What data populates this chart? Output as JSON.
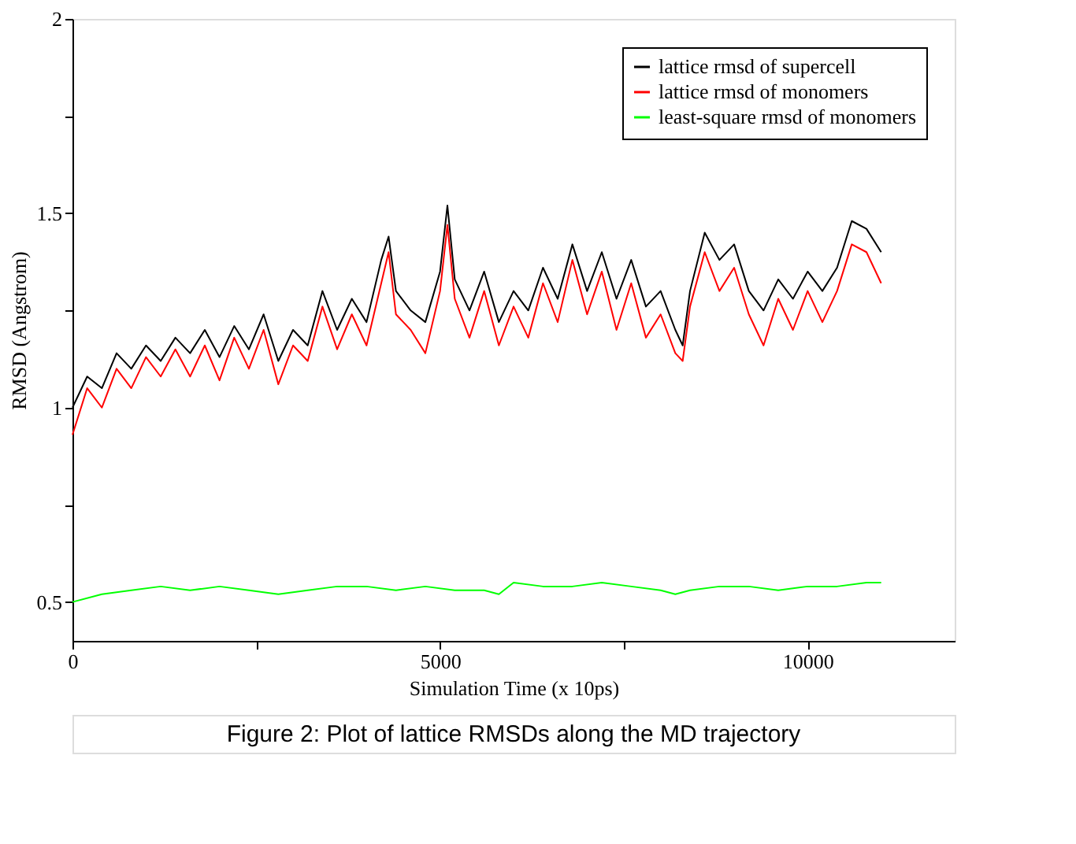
{
  "chart_data": {
    "type": "line",
    "xlabel": "Simulation Time (x 10ps)",
    "ylabel": "RMSD (Angstrom)",
    "xlim": [
      0,
      12000
    ],
    "ylim": [
      0.4,
      2
    ],
    "xticks": [
      0,
      {
        "value": 2500,
        "label": null
      },
      5000,
      {
        "value": 7500,
        "label": null
      },
      10000
    ],
    "yticks": [
      0.5,
      {
        "value": 0.75,
        "label": null
      },
      1,
      {
        "value": 1.25,
        "label": null
      },
      1.5,
      {
        "value": 1.75,
        "label": null
      },
      2
    ],
    "grid": false,
    "legend": "top right",
    "marker": "none",
    "line_style": "solid",
    "series": [
      {
        "name": "lattice rmsd of supercell",
        "color": "#000000",
        "x": [
          0,
          200,
          400,
          600,
          800,
          1000,
          1200,
          1400,
          1600,
          1800,
          2000,
          2200,
          2400,
          2600,
          2800,
          3000,
          3200,
          3400,
          3600,
          3800,
          4000,
          4200,
          4300,
          4400,
          4600,
          4800,
          5000,
          5100,
          5200,
          5400,
          5600,
          5800,
          6000,
          6200,
          6400,
          6600,
          6800,
          7000,
          7200,
          7400,
          7600,
          7800,
          8000,
          8200,
          8300,
          8400,
          8600,
          8800,
          9000,
          9200,
          9400,
          9600,
          9800,
          10000,
          10200,
          10400,
          10600,
          10800,
          11000
        ],
        "values": [
          1.0,
          1.08,
          1.05,
          1.14,
          1.1,
          1.16,
          1.12,
          1.18,
          1.14,
          1.2,
          1.13,
          1.21,
          1.15,
          1.24,
          1.12,
          1.2,
          1.16,
          1.3,
          1.2,
          1.28,
          1.22,
          1.38,
          1.44,
          1.3,
          1.25,
          1.22,
          1.35,
          1.52,
          1.33,
          1.25,
          1.35,
          1.22,
          1.3,
          1.25,
          1.36,
          1.28,
          1.42,
          1.3,
          1.4,
          1.28,
          1.38,
          1.26,
          1.3,
          1.2,
          1.16,
          1.3,
          1.45,
          1.38,
          1.42,
          1.3,
          1.25,
          1.33,
          1.28,
          1.35,
          1.3,
          1.36,
          1.48,
          1.46,
          1.4
        ]
      },
      {
        "name": "lattice rmsd of monomers",
        "color": "#ff0000",
        "x": [
          0,
          200,
          400,
          600,
          800,
          1000,
          1200,
          1400,
          1600,
          1800,
          2000,
          2200,
          2400,
          2600,
          2800,
          3000,
          3200,
          3400,
          3600,
          3800,
          4000,
          4200,
          4300,
          4400,
          4600,
          4800,
          5000,
          5100,
          5200,
          5400,
          5600,
          5800,
          6000,
          6200,
          6400,
          6600,
          6800,
          7000,
          7200,
          7400,
          7600,
          7800,
          8000,
          8200,
          8300,
          8400,
          8600,
          8800,
          9000,
          9200,
          9400,
          9600,
          9800,
          10000,
          10200,
          10400,
          10600,
          10800,
          11000
        ],
        "values": [
          0.93,
          1.05,
          1.0,
          1.1,
          1.05,
          1.13,
          1.08,
          1.15,
          1.08,
          1.16,
          1.07,
          1.18,
          1.1,
          1.2,
          1.06,
          1.16,
          1.12,
          1.26,
          1.15,
          1.24,
          1.16,
          1.32,
          1.4,
          1.24,
          1.2,
          1.14,
          1.3,
          1.47,
          1.28,
          1.18,
          1.3,
          1.16,
          1.26,
          1.18,
          1.32,
          1.22,
          1.38,
          1.24,
          1.35,
          1.2,
          1.32,
          1.18,
          1.24,
          1.14,
          1.12,
          1.26,
          1.4,
          1.3,
          1.36,
          1.24,
          1.16,
          1.28,
          1.2,
          1.3,
          1.22,
          1.3,
          1.42,
          1.4,
          1.32
        ]
      },
      {
        "name": "least-square rmsd of monomers",
        "color": "#00ff00",
        "x": [
          0,
          400,
          800,
          1200,
          1600,
          2000,
          2400,
          2800,
          3200,
          3600,
          4000,
          4400,
          4800,
          5200,
          5600,
          5800,
          6000,
          6400,
          6800,
          7200,
          7600,
          8000,
          8200,
          8400,
          8800,
          9200,
          9600,
          10000,
          10400,
          10800,
          11000
        ],
        "values": [
          0.5,
          0.52,
          0.53,
          0.54,
          0.53,
          0.54,
          0.53,
          0.52,
          0.53,
          0.54,
          0.54,
          0.53,
          0.54,
          0.53,
          0.53,
          0.52,
          0.55,
          0.54,
          0.54,
          0.55,
          0.54,
          0.53,
          0.52,
          0.53,
          0.54,
          0.54,
          0.53,
          0.54,
          0.54,
          0.55,
          0.55
        ]
      }
    ],
    "annotations": [
      "Figure 2: Plot of lattice RMSDs along the MD trajectory"
    ]
  }
}
